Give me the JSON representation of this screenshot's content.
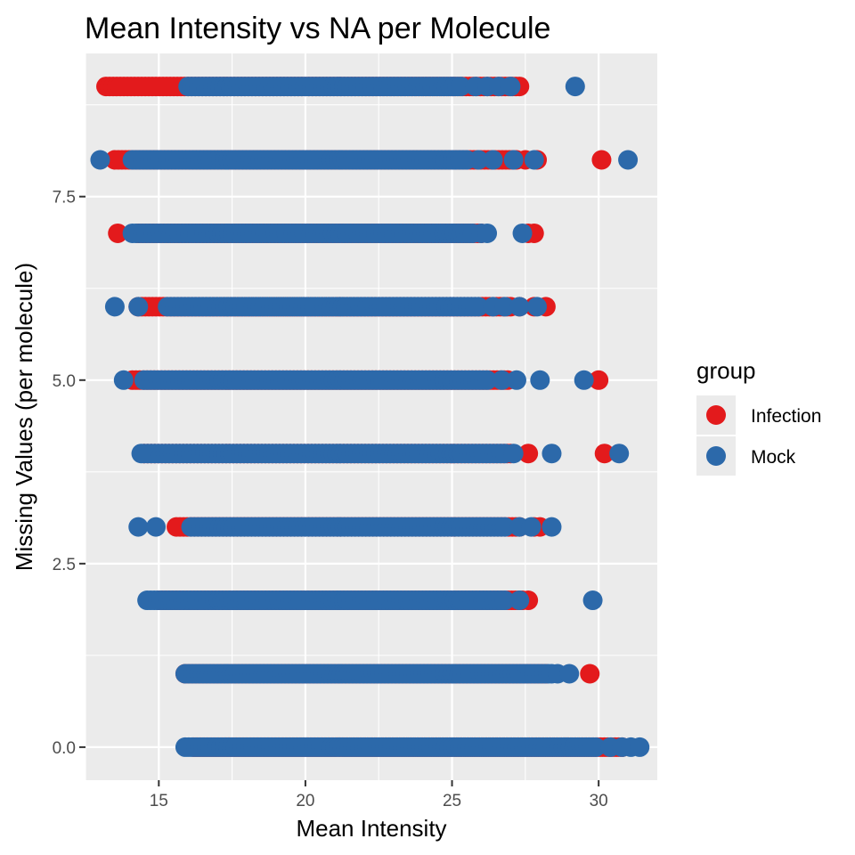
{
  "chart_data": {
    "type": "scatter",
    "title": "Mean Intensity vs NA per Molecule",
    "xlabel": "Mean Intensity",
    "ylabel": "Missing Values (per molecule)",
    "xlim": [
      12.5,
      32
    ],
    "ylim": [
      -0.45,
      9.45
    ],
    "xticks": [
      15,
      20,
      25,
      30
    ],
    "xtick_labels": [
      "15",
      "20",
      "25",
      "30"
    ],
    "yticks": [
      0,
      2.5,
      5,
      7.5
    ],
    "ytick_labels": [
      "0.0",
      "2.5",
      "5.0",
      "7.5"
    ],
    "grid": true,
    "legend": {
      "title": "group",
      "placement": "right"
    },
    "series": [
      {
        "name": "Infection",
        "color": "#E31A1C",
        "ranges": [
          {
            "y": 0,
            "min": 16.2,
            "max": 30.8,
            "outliers": []
          },
          {
            "y": 1,
            "min": 15.9,
            "max": 28.2,
            "outliers": [
              29.7
            ]
          },
          {
            "y": 2,
            "min": 15.0,
            "max": 27.4,
            "outliers": [
              27.6
            ]
          },
          {
            "y": 3,
            "min": 15.6,
            "max": 27.3,
            "outliers": [
              27.8,
              28.0
            ]
          },
          {
            "y": 4,
            "min": 14.5,
            "max": 27.0,
            "outliers": [
              27.6,
              30.2
            ]
          },
          {
            "y": 5,
            "min": 14.1,
            "max": 26.9,
            "outliers": [
              30.0
            ]
          },
          {
            "y": 6,
            "min": 14.3,
            "max": 27.0,
            "outliers": [
              27.3,
              27.8,
              28.2
            ]
          },
          {
            "y": 7,
            "min": 14.3,
            "max": 26.0,
            "outliers": [
              13.6,
              27.6,
              27.8
            ]
          },
          {
            "y": 8,
            "min": 13.5,
            "max": 27.2,
            "outliers": [
              27.5,
              27.9,
              30.1
            ]
          },
          {
            "y": 9,
            "min": 13.2,
            "max": 27.3,
            "outliers": []
          }
        ]
      },
      {
        "name": "Mock",
        "color": "#2C69AA",
        "ranges": [
          {
            "y": 0,
            "min": 15.9,
            "max": 29.9,
            "outliers": [
              30.4,
              30.8,
              31.1,
              31.4
            ]
          },
          {
            "y": 1,
            "min": 15.9,
            "max": 28.4,
            "outliers": [
              28.6,
              29.0
            ]
          },
          {
            "y": 2,
            "min": 14.6,
            "max": 26.8,
            "outliers": [
              27.3,
              29.8
            ]
          },
          {
            "y": 3,
            "min": 16.1,
            "max": 26.8,
            "outliers": [
              14.3,
              14.9,
              27.3,
              27.7,
              28.4
            ]
          },
          {
            "y": 4,
            "min": 14.5,
            "max": 26.8,
            "outliers": [
              14.4,
              27.1,
              28.4,
              30.7
            ]
          },
          {
            "y": 5,
            "min": 14.5,
            "max": 26.2,
            "outliers": [
              13.8,
              26.7,
              27.2,
              28.0,
              29.5
            ]
          },
          {
            "y": 6,
            "min": 15.3,
            "max": 25.9,
            "outliers": [
              13.5,
              14.3,
              26.4,
              26.8,
              27.3,
              27.9
            ]
          },
          {
            "y": 7,
            "min": 14.1,
            "max": 25.7,
            "outliers": [
              26.0,
              26.2,
              27.4
            ]
          },
          {
            "y": 8,
            "min": 14.1,
            "max": 25.5,
            "outliers": [
              13.0,
              25.9,
              26.4,
              27.1,
              27.8,
              31.0
            ]
          },
          {
            "y": 9,
            "min": 16.0,
            "max": 25.3,
            "outliers": [
              25.8,
              26.2,
              26.6,
              27.0,
              29.2
            ]
          }
        ]
      }
    ]
  }
}
